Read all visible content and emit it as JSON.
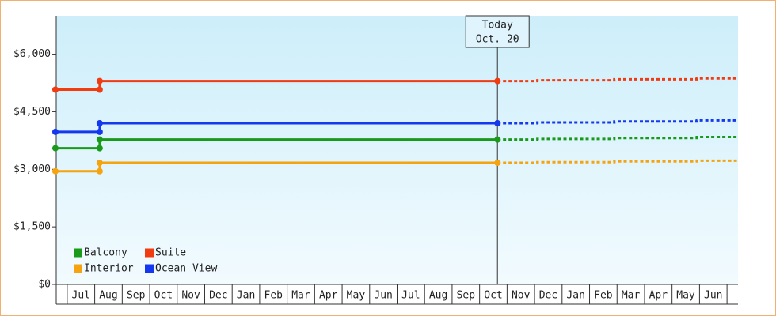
{
  "chart_data": {
    "type": "step-line",
    "ylim": [
      0,
      7000
    ],
    "yticks": [
      {
        "value": 0,
        "label": "$0"
      },
      {
        "value": 1500,
        "label": "$1,500"
      },
      {
        "value": 3000,
        "label": "$3,000"
      },
      {
        "value": 4500,
        "label": "$4,500"
      },
      {
        "value": 6000,
        "label": "$6,000"
      }
    ],
    "xlim": [
      -0.4,
      24.4
    ],
    "categories": [
      "Jul",
      "Aug",
      "Sep",
      "Oct",
      "Nov",
      "Dec",
      "Jan",
      "Feb",
      "Mar",
      "Apr",
      "May",
      "Jun",
      "Jul",
      "Aug",
      "Sep",
      "Oct",
      "Nov",
      "Dec",
      "Jan",
      "Feb",
      "Mar",
      "Apr",
      "May",
      "Jun"
    ],
    "today": {
      "x": 15.65,
      "label": [
        "Today",
        "Oct. 20"
      ]
    },
    "legend": "lower left",
    "series": [
      {
        "name": "Balcony",
        "color": "#1a9a1a",
        "x": [
          -0.43,
          1.18,
          1.18,
          15.65
        ],
        "values": [
          3550,
          3550,
          3775,
          3775
        ],
        "projection": {
          "x": [
            15.65,
            17.1,
            17.1,
            19.9,
            19.9,
            22.9,
            22.9,
            24.4
          ],
          "values": [
            3775,
            3775,
            3790,
            3790,
            3815,
            3815,
            3840,
            3840
          ]
        }
      },
      {
        "name": "Suite",
        "color": "#f03c10",
        "x": [
          -0.43,
          1.18,
          1.18,
          15.65
        ],
        "values": [
          5075,
          5075,
          5300,
          5300
        ],
        "projection": {
          "x": [
            15.65,
            17.1,
            17.1,
            19.9,
            19.9,
            22.9,
            22.9,
            24.4
          ],
          "values": [
            5300,
            5300,
            5320,
            5320,
            5345,
            5345,
            5370,
            5370
          ]
        }
      },
      {
        "name": "Interior",
        "color": "#f5a30f",
        "x": [
          -0.43,
          1.18,
          1.18,
          15.65
        ],
        "values": [
          2950,
          2950,
          3170,
          3170
        ],
        "projection": {
          "x": [
            15.65,
            17.1,
            17.1,
            19.9,
            19.9,
            22.9,
            22.9,
            24.4
          ],
          "values": [
            3170,
            3170,
            3185,
            3185,
            3205,
            3205,
            3225,
            3225
          ]
        }
      },
      {
        "name": "Ocean View",
        "color": "#1438f0",
        "x": [
          -0.43,
          1.18,
          1.18,
          15.65
        ],
        "values": [
          3975,
          3975,
          4200,
          4200
        ],
        "projection": {
          "x": [
            15.65,
            17.1,
            17.1,
            19.9,
            19.9,
            22.9,
            22.9,
            24.4
          ],
          "values": [
            4200,
            4200,
            4220,
            4220,
            4245,
            4245,
            4275,
            4275
          ]
        }
      }
    ]
  }
}
